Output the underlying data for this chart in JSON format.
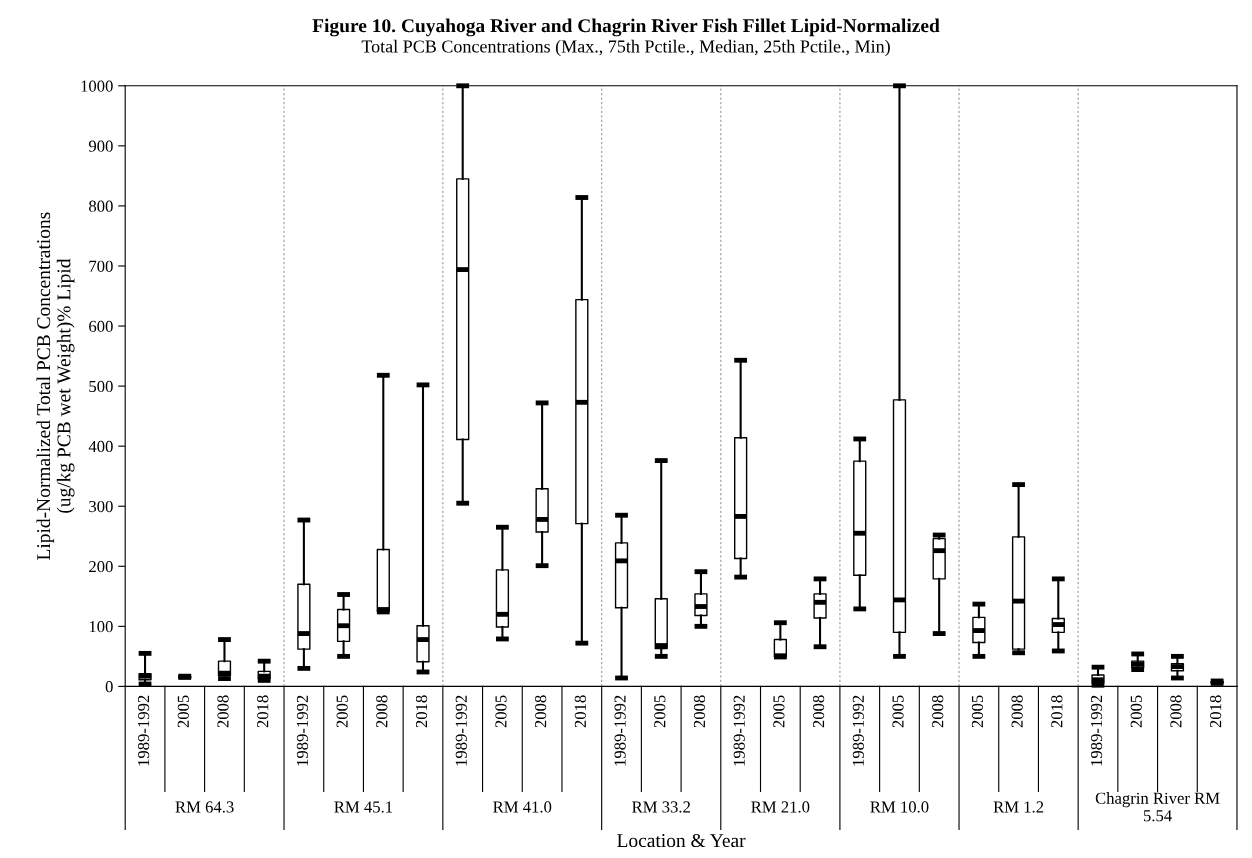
{
  "chart_data": {
    "type": "box",
    "title": "Figure 10. Cuyahoga River and Chagrin River Fish Fillet Lipid-Normalized",
    "subtitle": "Total PCB Concentrations (Max., 75th Pctile., Median, 25th Pctile., Min)",
    "xlabel": "Location & Year",
    "ylabel": "Lipid-Normalized Total PCB Concentrations\n(ug/kg PCB wet Weight)% Lipid",
    "categories": [
      "1989-1992",
      "2005",
      "2008",
      "2018",
      "1989-1992",
      "2005",
      "2008",
      "2018",
      "1989-1992",
      "2005",
      "2008",
      "2018",
      "1989-1992",
      "2005",
      "2008",
      "1989-1992",
      "2005",
      "2008",
      "1989-1992",
      "2005",
      "2008",
      "2005",
      "2008",
      "2018",
      "1989-1992",
      "2005",
      "2008",
      "2018"
    ],
    "annotations": [
      "RM 64.3",
      "RM 45.1",
      "RM 41.0",
      "RM 33.2",
      "RM 21.0",
      "RM 10.0",
      "RM 1.2",
      "Chagrin River RM 5.54"
    ],
    "boxes": [
      {
        "low": 4,
        "q1": 11,
        "median": 17,
        "q3": 21,
        "high": 55
      },
      {
        "low": 15,
        "q1": 15,
        "median": 16,
        "q3": 16,
        "high": 17
      },
      {
        "low": 13,
        "q1": 18,
        "median": 22,
        "q3": 42,
        "high": 78
      },
      {
        "low": 10,
        "q1": 13,
        "median": 17,
        "q3": 25,
        "high": 42
      },
      {
        "low": 30,
        "q1": 62,
        "median": 88,
        "q3": 170,
        "high": 277
      },
      {
        "low": 50,
        "q1": 75,
        "median": 101,
        "q3": 128,
        "high": 153
      },
      {
        "low": 124,
        "q1": 125,
        "median": 128,
        "q3": 228,
        "high": 518
      },
      {
        "low": 24,
        "q1": 41,
        "median": 78,
        "q3": 101,
        "high": 502
      },
      {
        "low": 305,
        "q1": 411,
        "median": 694,
        "q3": 845,
        "high": 1000
      },
      {
        "low": 79,
        "q1": 99,
        "median": 120,
        "q3": 194,
        "high": 265
      },
      {
        "low": 201,
        "q1": 257,
        "median": 278,
        "q3": 329,
        "high": 472
      },
      {
        "low": 72,
        "q1": 271,
        "median": 473,
        "q3": 644,
        "high": 814
      },
      {
        "low": 14,
        "q1": 131,
        "median": 209,
        "q3": 239,
        "high": 285
      },
      {
        "low": 50,
        "q1": 63,
        "median": 68,
        "q3": 146,
        "high": 376
      },
      {
        "low": 100,
        "q1": 118,
        "median": 133,
        "q3": 154,
        "high": 191
      },
      {
        "low": 182,
        "q1": 213,
        "median": 283,
        "q3": 414,
        "high": 543
      },
      {
        "low": 49,
        "q1": 50,
        "median": 51,
        "q3": 78,
        "high": 106
      },
      {
        "low": 66,
        "q1": 114,
        "median": 140,
        "q3": 154,
        "high": 179
      },
      {
        "low": 129,
        "q1": 185,
        "median": 255,
        "q3": 375,
        "high": 412
      },
      {
        "low": 50,
        "q1": 90,
        "median": 144,
        "q3": 477,
        "high": 1000
      },
      {
        "low": 88,
        "q1": 179,
        "median": 226,
        "q3": 246,
        "high": 252
      },
      {
        "low": 50,
        "q1": 73,
        "median": 93,
        "q3": 115,
        "high": 137
      },
      {
        "low": 56,
        "q1": 62,
        "median": 142,
        "q3": 249,
        "high": 336
      },
      {
        "low": 59,
        "q1": 90,
        "median": 103,
        "q3": 113,
        "high": 179
      },
      {
        "low": 2,
        "q1": 6,
        "median": 11,
        "q3": 19,
        "high": 32
      },
      {
        "low": 28,
        "q1": 32,
        "median": 37,
        "q3": 42,
        "high": 54
      },
      {
        "low": 14,
        "q1": 26,
        "median": 33,
        "q3": 38,
        "high": 50
      },
      {
        "low": 5,
        "q1": 6,
        "median": 7,
        "q3": 8,
        "high": 9
      }
    ],
    "ylim": [
      0,
      1000
    ],
    "yticks": [
      0,
      100,
      200,
      300,
      400,
      500,
      600,
      700,
      800,
      900,
      1000
    ],
    "grid": false
  }
}
